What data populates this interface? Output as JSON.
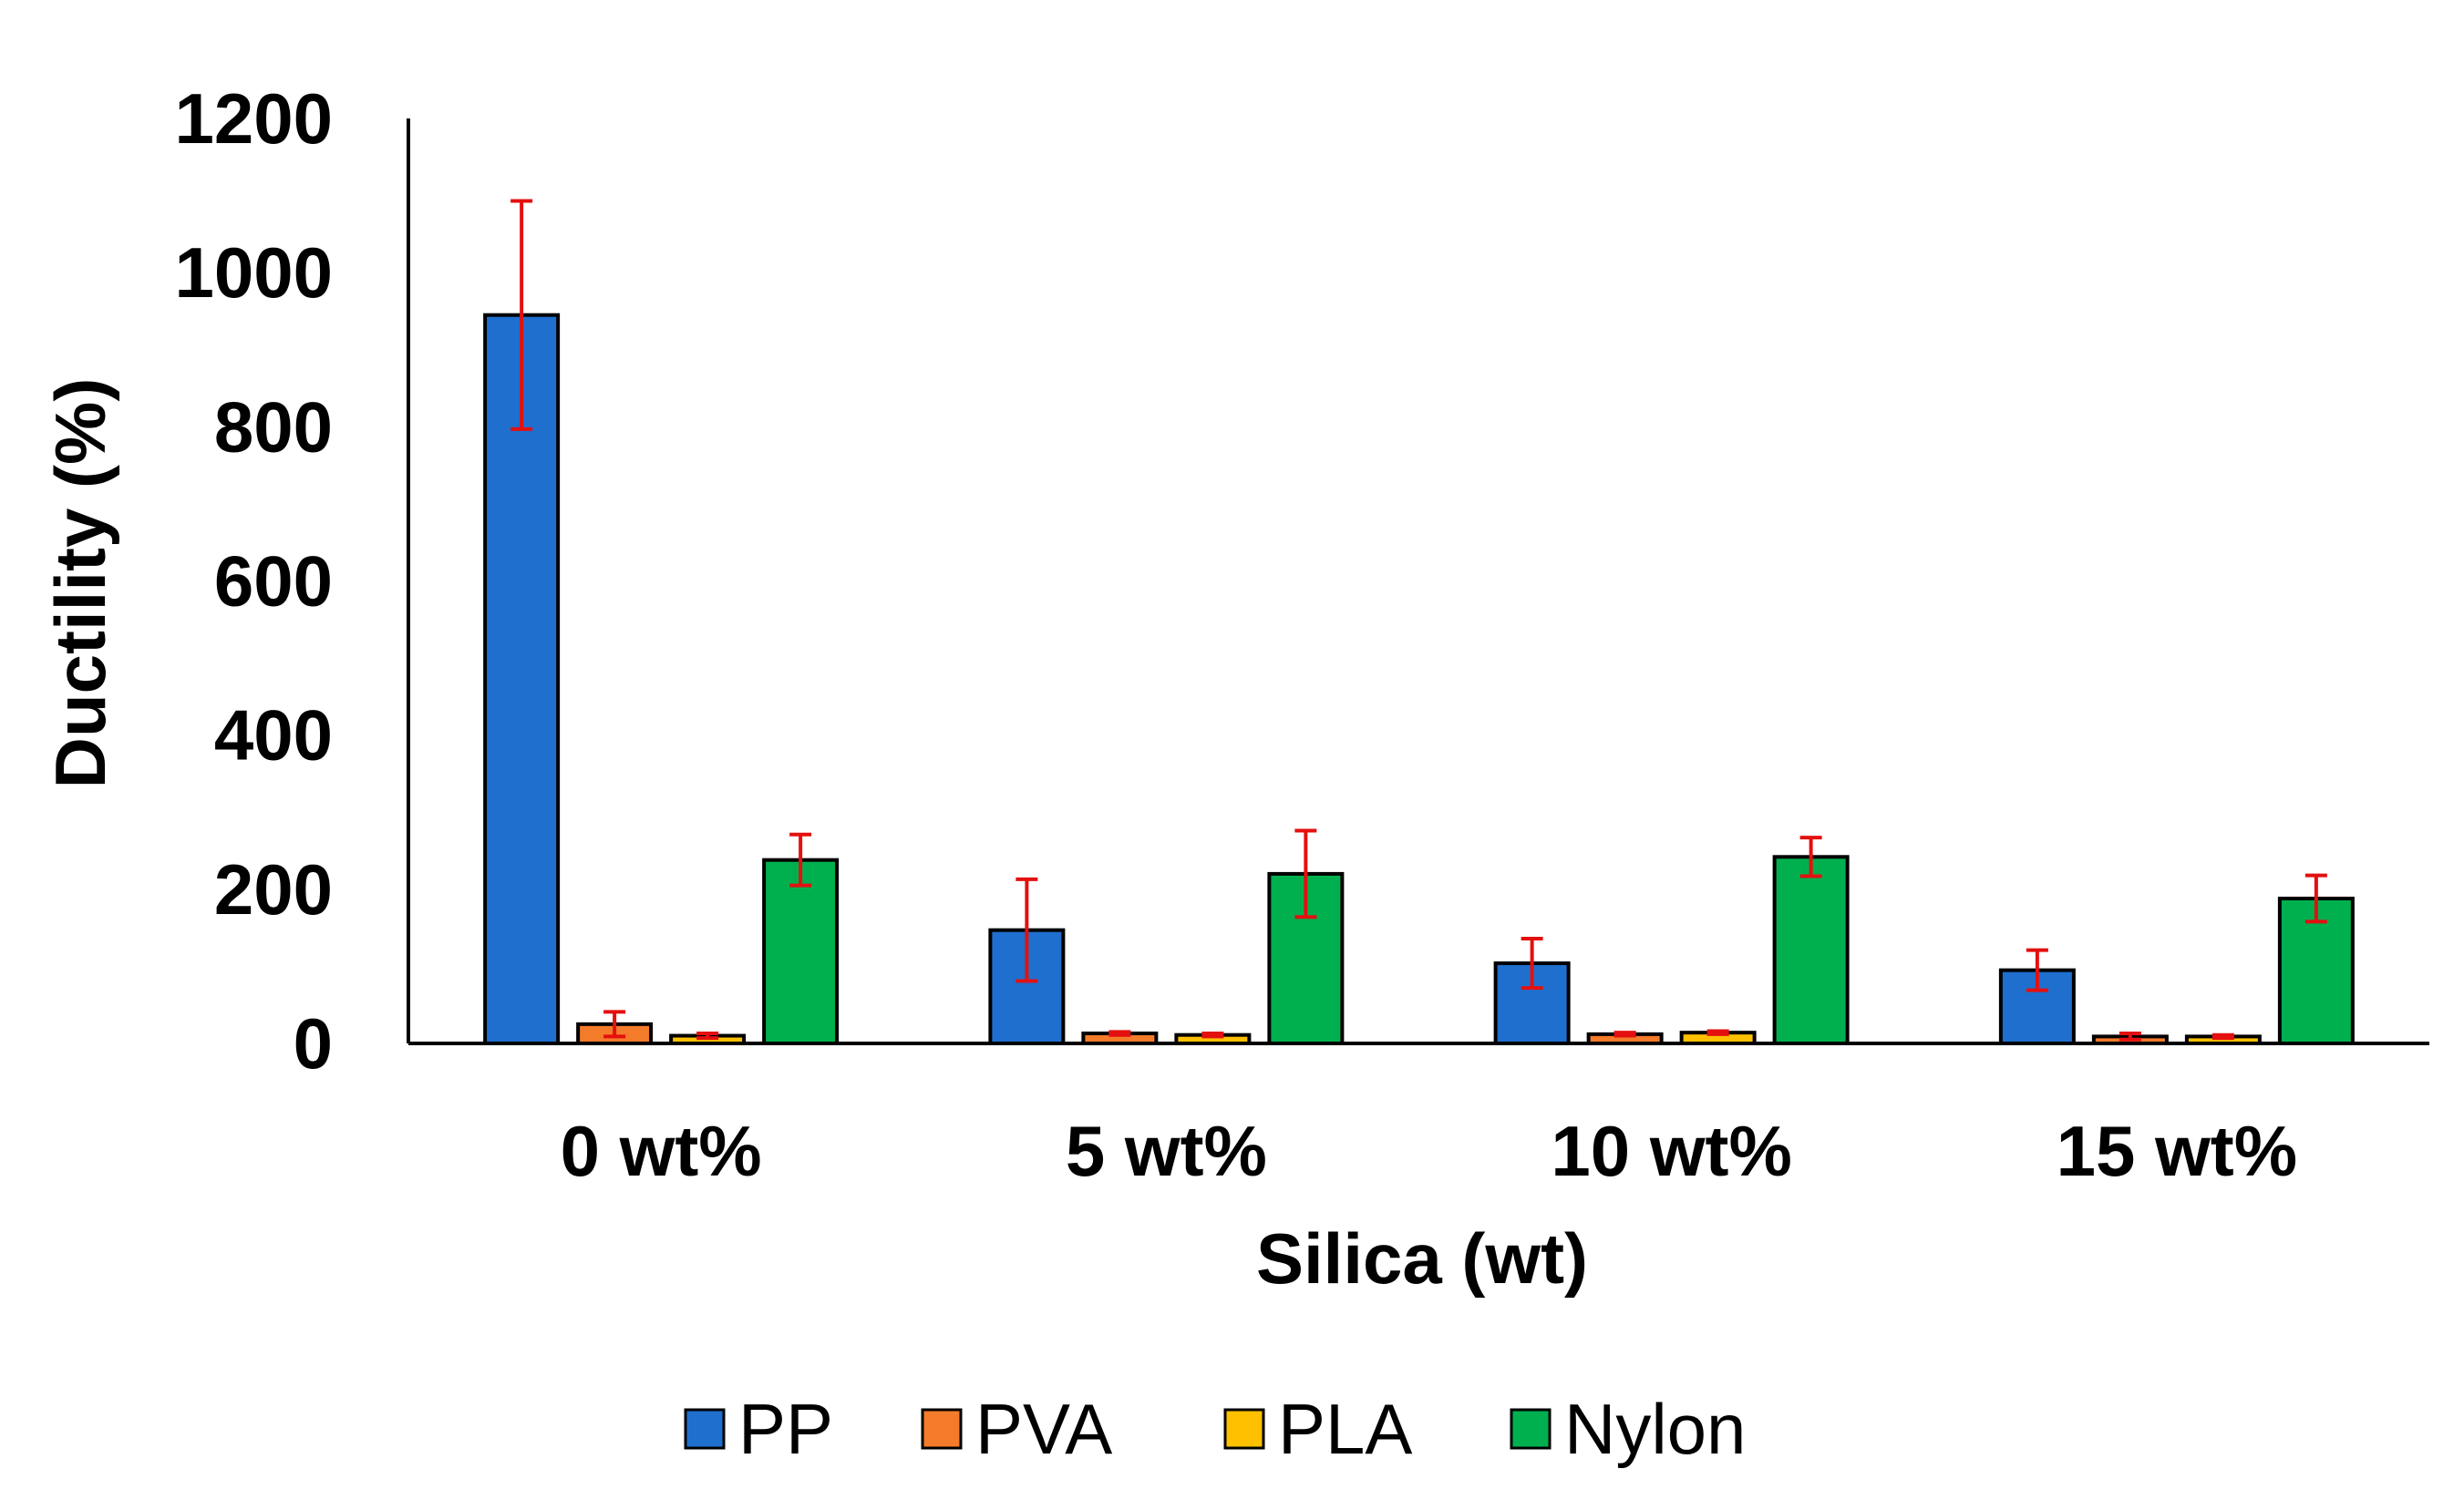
{
  "chart_data": {
    "type": "bar",
    "title": "",
    "xlabel": "Silica (wt)",
    "ylabel": "Ductility (%)",
    "ylim": [
      0,
      1200
    ],
    "yticks": [
      0,
      200,
      400,
      600,
      800,
      1000,
      1200
    ],
    "grid": false,
    "legend_position": "bottom",
    "categories": [
      "0 wt%",
      "5 wt%",
      "10 wt%",
      "15 wt%"
    ],
    "series": [
      {
        "name": "PP",
        "color": "#1f6fce",
        "values": [
          945,
          147,
          104,
          95
        ],
        "errors": [
          148,
          66,
          32,
          26
        ]
      },
      {
        "name": "PVA",
        "color": "#f47b2a",
        "values": [
          25,
          13,
          12,
          9
        ],
        "errors": [
          16,
          2,
          2,
          4
        ]
      },
      {
        "name": "PLA",
        "color": "#ffc000",
        "values": [
          10,
          11,
          14,
          9
        ],
        "errors": [
          3,
          2,
          2,
          2
        ]
      },
      {
        "name": "Nylon",
        "color": "#00b04f",
        "values": [
          238,
          220,
          242,
          188
        ],
        "errors": [
          33,
          56,
          25,
          30
        ]
      }
    ],
    "error_bar_color": "#e3100f"
  }
}
